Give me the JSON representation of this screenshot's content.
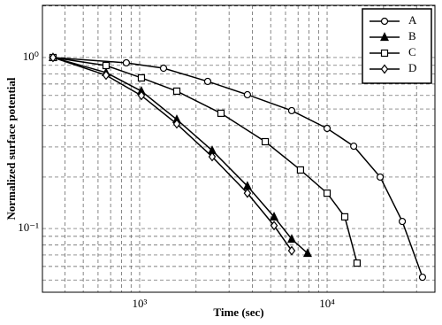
{
  "chart_data": {
    "type": "line",
    "log_x": true,
    "log_y": true,
    "grid": true,
    "legend": "upper right",
    "xlabel": "Time (sec)",
    "ylabel": "Normalized surface potential",
    "xlim": [
      303,
      37600
    ],
    "ylim": [
      0.0424,
      2.02
    ],
    "xticks": [
      {
        "value": 1000,
        "label": "10³"
      },
      {
        "value": 10000,
        "label": "10⁴"
      }
    ],
    "yticks": [
      {
        "value": 0.1,
        "label": "10⁻¹"
      },
      {
        "value": 1,
        "label": "10⁰"
      }
    ],
    "xminor": [
      400,
      500,
      600,
      700,
      800,
      900,
      2000,
      3000,
      4000,
      5000,
      6000,
      7000,
      8000,
      9000,
      20000,
      30000
    ],
    "yminor": [
      0.05,
      0.06,
      0.07,
      0.08,
      0.09,
      0.2,
      0.3,
      0.4,
      0.5,
      0.6,
      0.7,
      0.8,
      0.9,
      2
    ],
    "series": [
      {
        "name": "A",
        "color": "#000000",
        "marker": "circle",
        "marker_fill": "#ffffff",
        "x": [
          345,
          849,
          1341,
          2307,
          3758,
          6474,
          10000,
          13870,
          19190,
          25180,
          32280
        ],
        "values": [
          1.0,
          0.931,
          0.866,
          0.725,
          0.606,
          0.489,
          0.385,
          0.303,
          0.2,
          0.11,
          0.0519
        ]
      },
      {
        "name": "B",
        "color": "#000000",
        "marker": "triangle",
        "marker_fill": "#000000",
        "x": [
          345,
          662,
          1022,
          1578,
          2437,
          3758,
          5213,
          6474,
          7870
        ],
        "values": [
          1.0,
          0.817,
          0.636,
          0.434,
          0.286,
          0.177,
          0.117,
          0.0867,
          0.0716
        ]
      },
      {
        "name": "C",
        "color": "#000000",
        "marker": "square",
        "marker_fill": "#ffffff",
        "x": [
          345,
          662,
          1022,
          1578,
          2716,
          4678,
          7211,
          10000,
          12420,
          14450
        ],
        "values": [
          1.0,
          0.898,
          0.76,
          0.636,
          0.472,
          0.322,
          0.22,
          0.161,
          0.117,
          0.0628
        ]
      },
      {
        "name": "D",
        "color": "#000000",
        "marker": "diamond",
        "marker_fill": "#ffffff",
        "x": [
          345,
          662,
          1022,
          1578,
          2437,
          3758,
          5213,
          6474
        ],
        "values": [
          1.0,
          0.788,
          0.599,
          0.409,
          0.263,
          0.161,
          0.104,
          0.0742
        ]
      }
    ]
  }
}
